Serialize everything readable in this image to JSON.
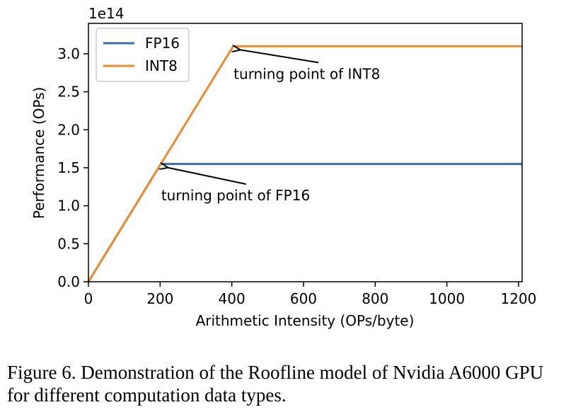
{
  "chart_data": {
    "type": "line",
    "xlabel": "Arithmetic Intensity (OPs/byte)",
    "ylabel": "Performance (OPs)",
    "y_offset_text": "1e14",
    "xlim": [
      0,
      1210
    ],
    "ylim": [
      0,
      3.4
    ],
    "x_ticks": [
      0,
      200,
      400,
      600,
      800,
      1000,
      1200
    ],
    "x_tick_labels": [
      "0",
      "200",
      "400",
      "600",
      "800",
      "1000",
      "1200"
    ],
    "y_ticks": [
      0,
      0.5,
      1.0,
      1.5,
      2.0,
      2.5,
      3.0
    ],
    "y_tick_labels": [
      "0.0",
      "0.5",
      "1.0",
      "1.5",
      "2.0",
      "2.5",
      "3.0"
    ],
    "legend_position": "top-left",
    "series": [
      {
        "name": "FP16",
        "color": "#3a6fa8",
        "points": [
          [
            0,
            0
          ],
          [
            202,
            1.55
          ],
          [
            1210,
            1.55
          ]
        ]
      },
      {
        "name": "INT8",
        "color": "#ee8a2f",
        "points": [
          [
            0,
            0
          ],
          [
            404,
            3.1
          ],
          [
            1210,
            3.1
          ]
        ]
      }
    ],
    "annotations": [
      {
        "text": "turning point of INT8",
        "point": [
          404,
          3.1
        ],
        "text_pos": [
          405,
          2.67
        ]
      },
      {
        "text": "turning point of FP16",
        "point": [
          202,
          1.55
        ],
        "text_pos": [
          203,
          1.07
        ]
      }
    ]
  },
  "caption": "Figure 6. Demonstration of the Roofline model of Nvidia A6000 GPU for different computation data types."
}
